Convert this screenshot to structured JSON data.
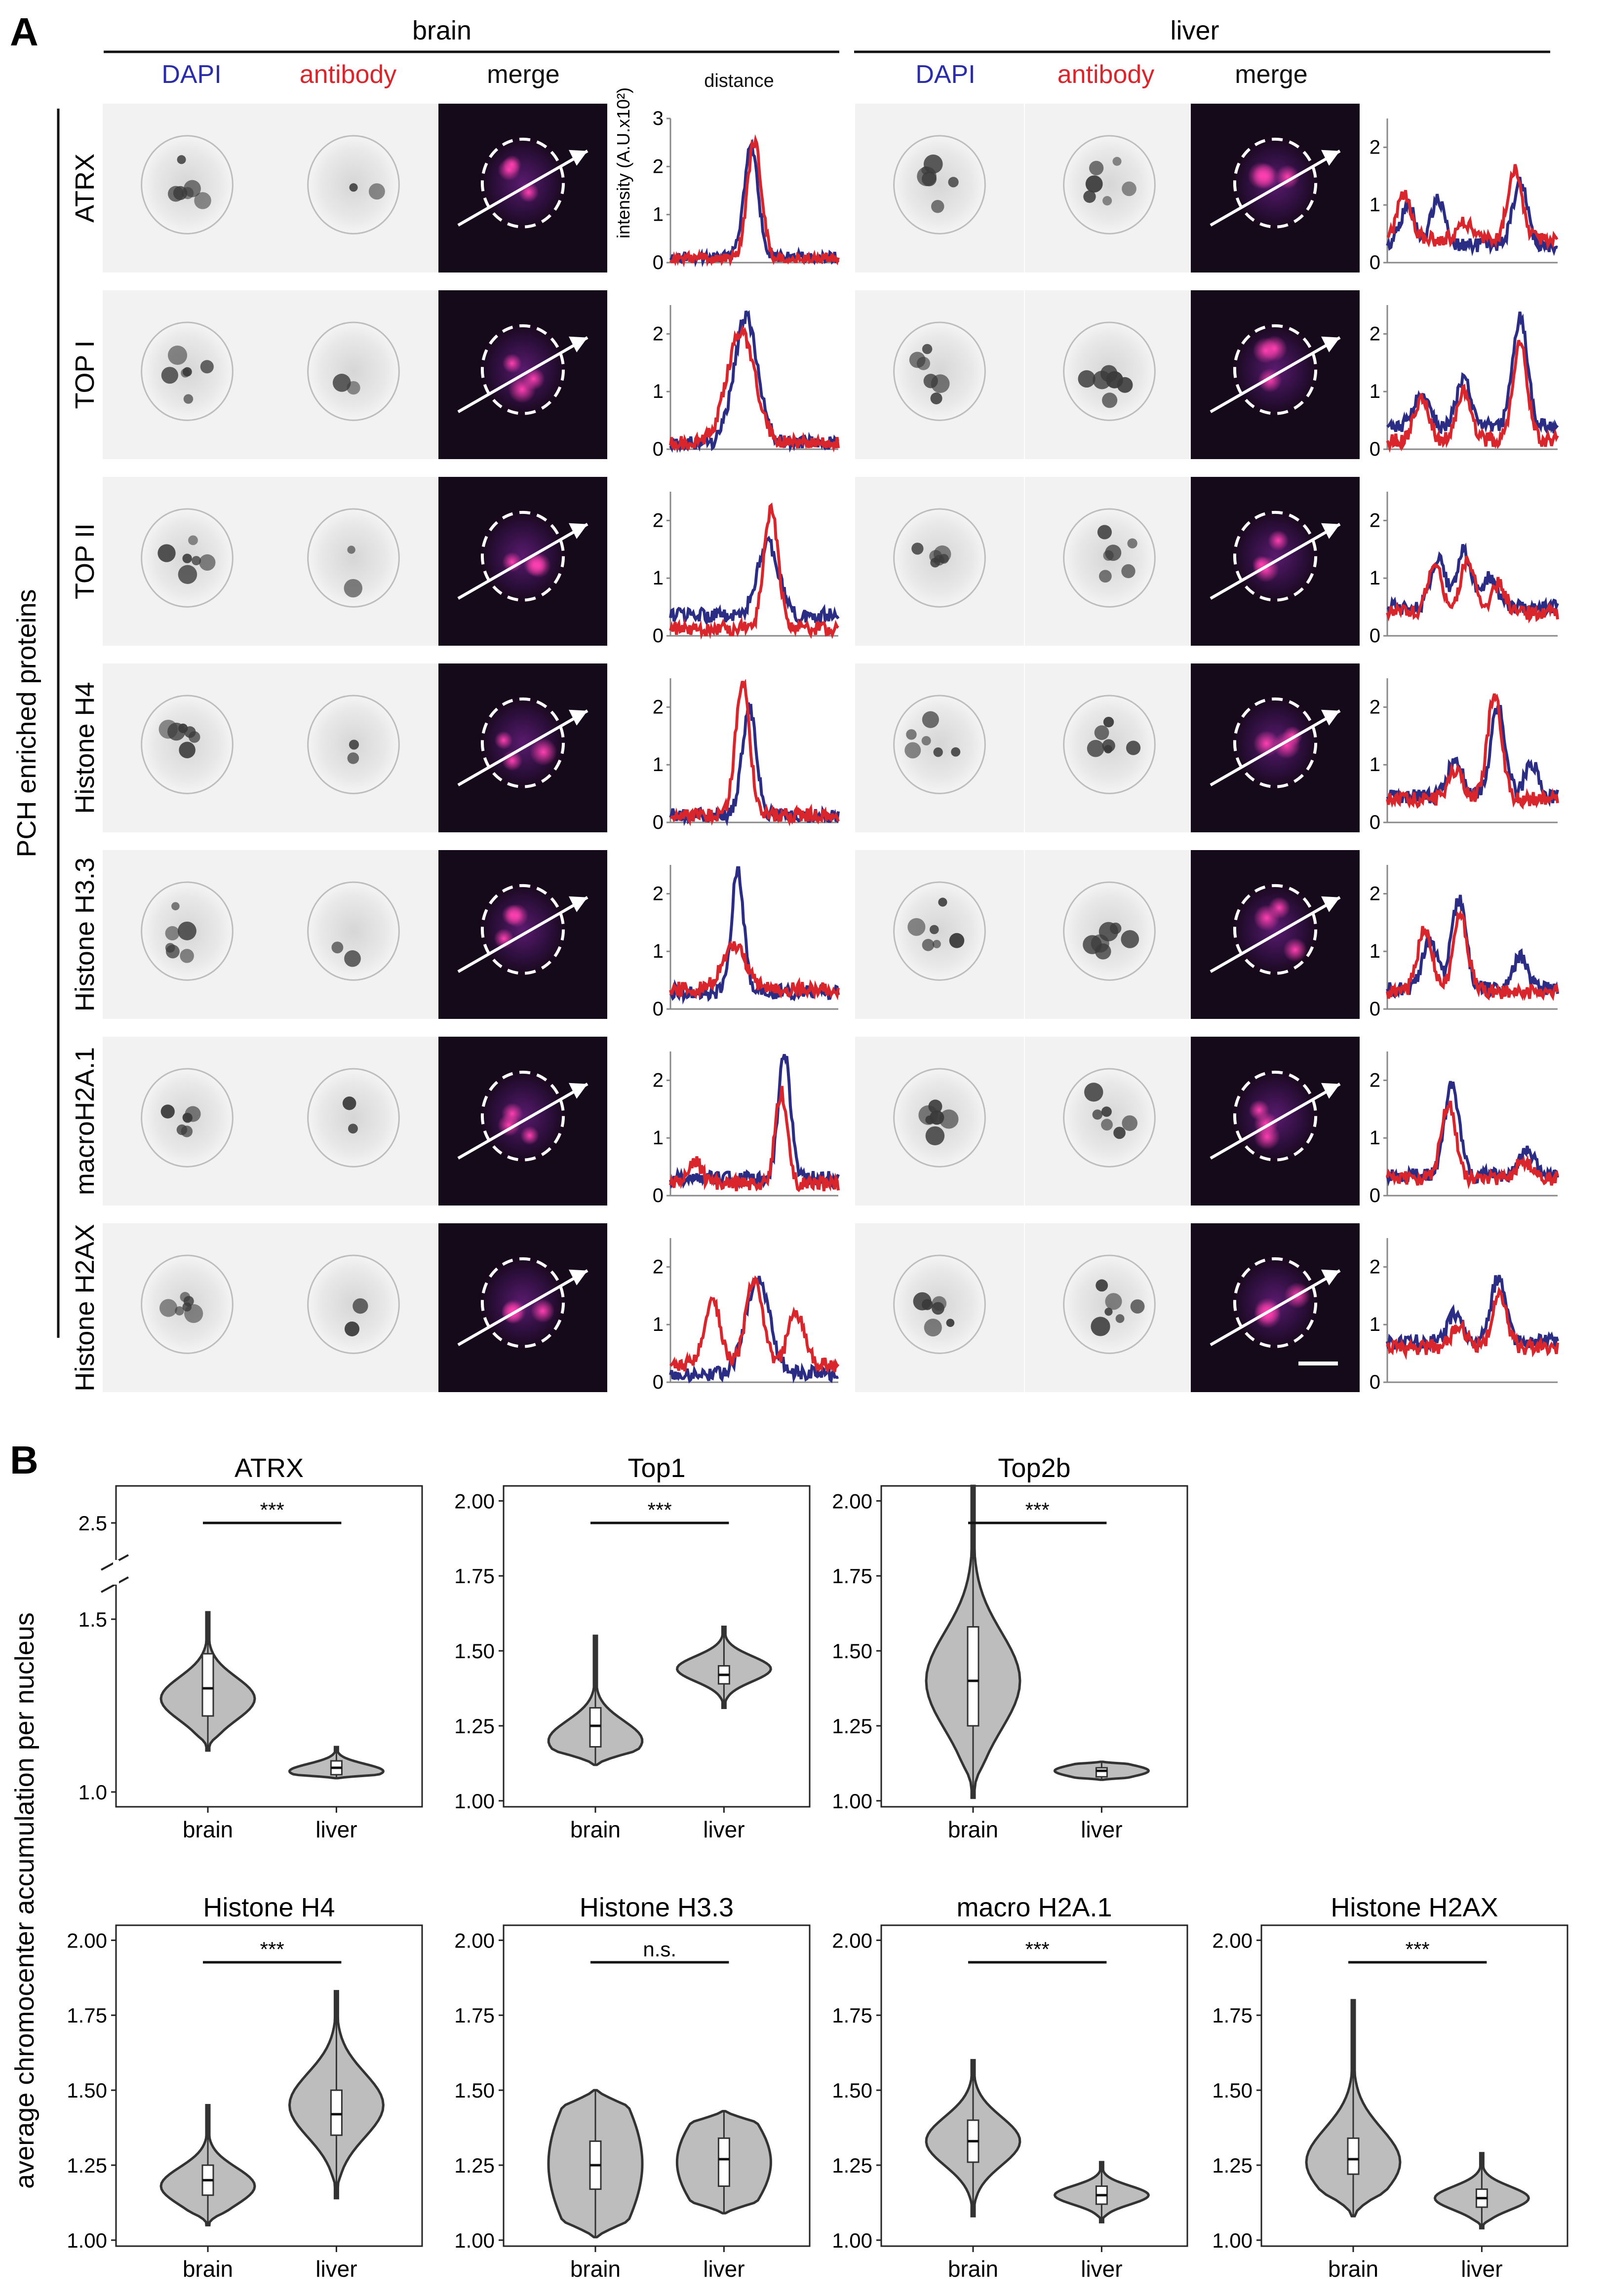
{
  "figure": {
    "panel_a_letter": "A",
    "panel_b_letter": "B",
    "tissue_headers": [
      "brain",
      "liver"
    ],
    "column_headers": [
      "DAPI",
      "antibody",
      "merge"
    ],
    "side_label": "PCH enriched proteins",
    "profile_ylabel": "intensity (A.U.x10²)",
    "profile_xlabel": "distance",
    "proteins": [
      "ATRX",
      "TOP I",
      "TOP II",
      "Histone H4",
      "Histone H3.3",
      "macroH2A.1",
      "Histone H2AX"
    ],
    "b_ylabel": "average chromocenter accumulation per nucleus"
  },
  "chart_data": [
    {
      "type": "line",
      "panel": "A",
      "tissue": "brain",
      "protein": "ATRX",
      "series": [
        {
          "name": "DAPI",
          "color": "#2b2c84",
          "peaks": [
            [
              0.48,
              2.4
            ]
          ],
          "base": 0.1
        },
        {
          "name": "antibody",
          "color": "#d9262c",
          "peaks": [
            [
              0.5,
              2.5
            ]
          ],
          "base": 0.08
        }
      ],
      "ylim": [
        0,
        3
      ],
      "yticks": [
        0,
        1,
        2,
        3
      ]
    },
    {
      "type": "line",
      "panel": "A",
      "tissue": "liver",
      "protein": "ATRX",
      "series": [
        {
          "name": "DAPI",
          "color": "#2b2c84",
          "peaks": [
            [
              0.12,
              1.0
            ],
            [
              0.3,
              1.1
            ],
            [
              0.78,
              1.4
            ]
          ],
          "base": 0.3
        },
        {
          "name": "antibody",
          "color": "#d9262c",
          "peaks": [
            [
              0.1,
              1.2
            ],
            [
              0.45,
              0.7
            ],
            [
              0.75,
              1.6
            ]
          ],
          "base": 0.4
        }
      ],
      "ylim": [
        0,
        2.5
      ],
      "yticks": [
        0,
        1,
        2
      ]
    },
    {
      "type": "line",
      "panel": "A",
      "tissue": "brain",
      "protein": "TOP I",
      "series": [
        {
          "name": "DAPI",
          "color": "#2b2c84",
          "peaks": [
            [
              0.45,
              2.3
            ]
          ],
          "base": 0.1,
          "width": 0.1
        },
        {
          "name": "antibody",
          "color": "#d9262c",
          "peaks": [
            [
              0.42,
              2.0
            ]
          ],
          "base": 0.1,
          "width": 0.12
        }
      ],
      "ylim": [
        0,
        2.5
      ],
      "yticks": [
        0,
        1,
        2
      ]
    },
    {
      "type": "line",
      "panel": "A",
      "tissue": "liver",
      "protein": "TOP I",
      "series": [
        {
          "name": "DAPI",
          "color": "#2b2c84",
          "peaks": [
            [
              0.2,
              1.0
            ],
            [
              0.45,
              1.2
            ],
            [
              0.78,
              2.3
            ]
          ],
          "base": 0.4
        },
        {
          "name": "antibody",
          "color": "#d9262c",
          "peaks": [
            [
              0.2,
              0.9
            ],
            [
              0.45,
              1.0
            ],
            [
              0.78,
              1.8
            ]
          ],
          "base": 0.15
        }
      ],
      "ylim": [
        0,
        2.5
      ],
      "yticks": [
        0,
        1,
        2
      ]
    },
    {
      "type": "line",
      "panel": "A",
      "tissue": "brain",
      "protein": "TOP II",
      "series": [
        {
          "name": "DAPI",
          "color": "#2b2c84",
          "peaks": [
            [
              0.58,
              1.6
            ]
          ],
          "base": 0.35,
          "width": 0.09
        },
        {
          "name": "antibody",
          "color": "#d9262c",
          "peaks": [
            [
              0.6,
              2.2
            ]
          ],
          "base": 0.12,
          "width": 0.06
        }
      ],
      "ylim": [
        0,
        2.5
      ],
      "yticks": [
        0,
        1,
        2
      ]
    },
    {
      "type": "line",
      "panel": "A",
      "tissue": "liver",
      "protein": "TOP II",
      "series": [
        {
          "name": "DAPI",
          "color": "#2b2c84",
          "peaks": [
            [
              0.3,
              1.3
            ],
            [
              0.45,
              1.5
            ],
            [
              0.6,
              1.0
            ]
          ],
          "base": 0.5
        },
        {
          "name": "antibody",
          "color": "#d9262c",
          "peaks": [
            [
              0.28,
              1.2
            ],
            [
              0.47,
              1.3
            ],
            [
              0.65,
              0.9
            ]
          ],
          "base": 0.4
        }
      ],
      "ylim": [
        0,
        2.5
      ],
      "yticks": [
        0,
        1,
        2
      ]
    },
    {
      "type": "line",
      "panel": "A",
      "tissue": "brain",
      "protein": "Histone H4",
      "series": [
        {
          "name": "DAPI",
          "color": "#2b2c84",
          "peaks": [
            [
              0.47,
              2.0
            ]
          ],
          "base": 0.12
        },
        {
          "name": "antibody",
          "color": "#d9262c",
          "peaks": [
            [
              0.43,
              2.4
            ]
          ],
          "base": 0.12
        }
      ],
      "ylim": [
        0,
        2.5
      ],
      "yticks": [
        0,
        1,
        2
      ]
    },
    {
      "type": "line",
      "panel": "A",
      "tissue": "liver",
      "protein": "Histone H4",
      "series": [
        {
          "name": "DAPI",
          "color": "#2b2c84",
          "peaks": [
            [
              0.4,
              1.1
            ],
            [
              0.65,
              2.0
            ],
            [
              0.85,
              1.0
            ]
          ],
          "base": 0.45
        },
        {
          "name": "antibody",
          "color": "#d9262c",
          "peaks": [
            [
              0.4,
              0.9
            ],
            [
              0.63,
              2.2
            ]
          ],
          "base": 0.4
        }
      ],
      "ylim": [
        0,
        2.5
      ],
      "yticks": [
        0,
        1,
        2
      ]
    },
    {
      "type": "line",
      "panel": "A",
      "tissue": "brain",
      "protein": "Histone H3.3",
      "series": [
        {
          "name": "DAPI",
          "color": "#2b2c84",
          "peaks": [
            [
              0.4,
              2.4
            ]
          ],
          "base": 0.3,
          "width": 0.05
        },
        {
          "name": "antibody",
          "color": "#d9262c",
          "peaks": [
            [
              0.38,
              1.1
            ]
          ],
          "base": 0.35,
          "width": 0.1
        }
      ],
      "ylim": [
        0,
        2.5
      ],
      "yticks": [
        0,
        1,
        2
      ]
    },
    {
      "type": "line",
      "panel": "A",
      "tissue": "liver",
      "protein": "Histone H3.3",
      "series": [
        {
          "name": "DAPI",
          "color": "#2b2c84",
          "peaks": [
            [
              0.25,
              1.2
            ],
            [
              0.42,
              1.9
            ],
            [
              0.78,
              0.9
            ]
          ],
          "base": 0.35
        },
        {
          "name": "antibody",
          "color": "#d9262c",
          "peaks": [
            [
              0.22,
              1.4
            ],
            [
              0.43,
              1.6
            ]
          ],
          "base": 0.3
        }
      ],
      "ylim": [
        0,
        2.5
      ],
      "yticks": [
        0,
        1,
        2
      ]
    },
    {
      "type": "line",
      "panel": "A",
      "tissue": "brain",
      "protein": "macroH2A.1",
      "series": [
        {
          "name": "DAPI",
          "color": "#2b2c84",
          "peaks": [
            [
              0.68,
              2.5
            ]
          ],
          "base": 0.3,
          "width": 0.05
        },
        {
          "name": "antibody",
          "color": "#d9262c",
          "peaks": [
            [
              0.15,
              0.6
            ],
            [
              0.66,
              1.8
            ]
          ],
          "base": 0.2,
          "width": 0.05
        }
      ],
      "ylim": [
        0,
        2.5
      ],
      "yticks": [
        0,
        1,
        2
      ]
    },
    {
      "type": "line",
      "panel": "A",
      "tissue": "liver",
      "protein": "macroH2A.1",
      "series": [
        {
          "name": "DAPI",
          "color": "#2b2c84",
          "peaks": [
            [
              0.38,
              1.9
            ],
            [
              0.82,
              0.8
            ]
          ],
          "base": 0.35
        },
        {
          "name": "antibody",
          "color": "#d9262c",
          "peaks": [
            [
              0.36,
              1.6
            ],
            [
              0.8,
              0.6
            ]
          ],
          "base": 0.3
        }
      ],
      "ylim": [
        0,
        2.5
      ],
      "yticks": [
        0,
        1,
        2
      ]
    },
    {
      "type": "line",
      "panel": "A",
      "tissue": "brain",
      "protein": "Histone H2AX",
      "series": [
        {
          "name": "DAPI",
          "color": "#2b2c84",
          "peaks": [
            [
              0.52,
              1.8
            ]
          ],
          "base": 0.15,
          "width": 0.1
        },
        {
          "name": "antibody",
          "color": "#d9262c",
          "peaks": [
            [
              0.25,
              1.4
            ],
            [
              0.5,
              1.8
            ],
            [
              0.75,
              1.2
            ]
          ],
          "base": 0.3,
          "width": 0.07
        }
      ],
      "ylim": [
        0,
        2.5
      ],
      "yticks": [
        0,
        1,
        2
      ]
    },
    {
      "type": "line",
      "panel": "A",
      "tissue": "liver",
      "protein": "Histone H2AX",
      "series": [
        {
          "name": "DAPI",
          "color": "#2b2c84",
          "peaks": [
            [
              0.4,
              1.2
            ],
            [
              0.65,
              1.8
            ]
          ],
          "base": 0.7
        },
        {
          "name": "antibody",
          "color": "#d9262c",
          "peaks": [
            [
              0.42,
              1.0
            ],
            [
              0.66,
              1.5
            ]
          ],
          "base": 0.6
        }
      ],
      "ylim": [
        0,
        2.5
      ],
      "yticks": [
        0,
        1,
        2
      ]
    },
    {
      "type": "violin",
      "panel": "B",
      "title": "ATRX",
      "broken_axis": true,
      "categories": [
        "brain",
        "liver"
      ],
      "yticks": [
        "1.0",
        "1.5",
        "2.5"
      ],
      "significance": "***",
      "groups": [
        {
          "name": "brain",
          "min": 1.12,
          "q1": 1.22,
          "median": 1.3,
          "q3": 1.4,
          "max": 1.52,
          "mode": 1.27
        },
        {
          "name": "liver",
          "min": 1.04,
          "q1": 1.05,
          "median": 1.07,
          "q3": 1.09,
          "max": 1.13,
          "mode": 1.06
        }
      ]
    },
    {
      "type": "violin",
      "panel": "B",
      "title": "Top1",
      "categories": [
        "brain",
        "liver"
      ],
      "ylim": [
        0.98,
        2.05
      ],
      "yticks": [
        "1.00",
        "1.25",
        "1.50",
        "1.75",
        "2.00"
      ],
      "significance": "***",
      "groups": [
        {
          "name": "brain",
          "min": 1.12,
          "q1": 1.18,
          "median": 1.25,
          "q3": 1.31,
          "max": 1.55,
          "mode": 1.2
        },
        {
          "name": "liver",
          "min": 1.31,
          "q1": 1.39,
          "median": 1.42,
          "q3": 1.45,
          "max": 1.58,
          "mode": 1.44
        }
      ]
    },
    {
      "type": "violin",
      "panel": "B",
      "title": "Top2b",
      "categories": [
        "brain",
        "liver"
      ],
      "ylim": [
        0.98,
        2.05
      ],
      "yticks": [
        "1.00",
        "1.25",
        "1.50",
        "1.75",
        "2.00"
      ],
      "significance": "***",
      "groups": [
        {
          "name": "brain",
          "min": 1.01,
          "q1": 1.25,
          "median": 1.4,
          "q3": 1.58,
          "max": 2.05,
          "mode": 1.4
        },
        {
          "name": "liver",
          "min": 1.07,
          "q1": 1.08,
          "median": 1.1,
          "q3": 1.11,
          "max": 1.13,
          "mode": 1.1
        }
      ]
    },
    {
      "type": "violin",
      "panel": "B",
      "title": "Histone H4",
      "categories": [
        "brain",
        "liver"
      ],
      "ylim": [
        0.98,
        2.05
      ],
      "yticks": [
        "1.00",
        "1.25",
        "1.50",
        "1.75",
        "2.00"
      ],
      "significance": "***",
      "groups": [
        {
          "name": "brain",
          "min": 1.05,
          "q1": 1.15,
          "median": 1.2,
          "q3": 1.25,
          "max": 1.45,
          "mode": 1.18
        },
        {
          "name": "liver",
          "min": 1.14,
          "q1": 1.35,
          "median": 1.42,
          "q3": 1.5,
          "max": 1.83,
          "mode": 1.45
        }
      ]
    },
    {
      "type": "violin",
      "panel": "B",
      "title": "Histone H3.3",
      "categories": [
        "brain",
        "liver"
      ],
      "ylim": [
        0.98,
        2.05
      ],
      "yticks": [
        "1.00",
        "1.25",
        "1.50",
        "1.75",
        "2.00"
      ],
      "significance": "n.s.",
      "groups": [
        {
          "name": "brain",
          "min": 1.01,
          "q1": 1.17,
          "median": 1.25,
          "q3": 1.33,
          "max": 1.5,
          "mode": 1.25,
          "flat": true
        },
        {
          "name": "liver",
          "min": 1.09,
          "q1": 1.18,
          "median": 1.27,
          "q3": 1.34,
          "max": 1.43,
          "mode": 1.27,
          "flat": true
        }
      ]
    },
    {
      "type": "violin",
      "panel": "B",
      "title": "macro H2A.1",
      "categories": [
        "brain",
        "liver"
      ],
      "ylim": [
        0.98,
        2.05
      ],
      "yticks": [
        "1.00",
        "1.25",
        "1.50",
        "1.75",
        "2.00"
      ],
      "significance": "***",
      "groups": [
        {
          "name": "brain",
          "min": 1.08,
          "q1": 1.26,
          "median": 1.33,
          "q3": 1.4,
          "max": 1.6,
          "mode": 1.33
        },
        {
          "name": "liver",
          "min": 1.06,
          "q1": 1.12,
          "median": 1.15,
          "q3": 1.18,
          "max": 1.26,
          "mode": 1.15
        }
      ]
    },
    {
      "type": "violin",
      "panel": "B",
      "title": "Histone H2AX",
      "categories": [
        "brain",
        "liver"
      ],
      "ylim": [
        0.98,
        2.05
      ],
      "yticks": [
        "1.00",
        "1.25",
        "1.50",
        "1.75",
        "2.00"
      ],
      "significance": "***",
      "groups": [
        {
          "name": "brain",
          "min": 1.08,
          "q1": 1.22,
          "median": 1.27,
          "q3": 1.34,
          "max": 1.8,
          "mode": 1.26
        },
        {
          "name": "liver",
          "min": 1.04,
          "q1": 1.11,
          "median": 1.14,
          "q3": 1.17,
          "max": 1.29,
          "mode": 1.14
        }
      ]
    }
  ]
}
